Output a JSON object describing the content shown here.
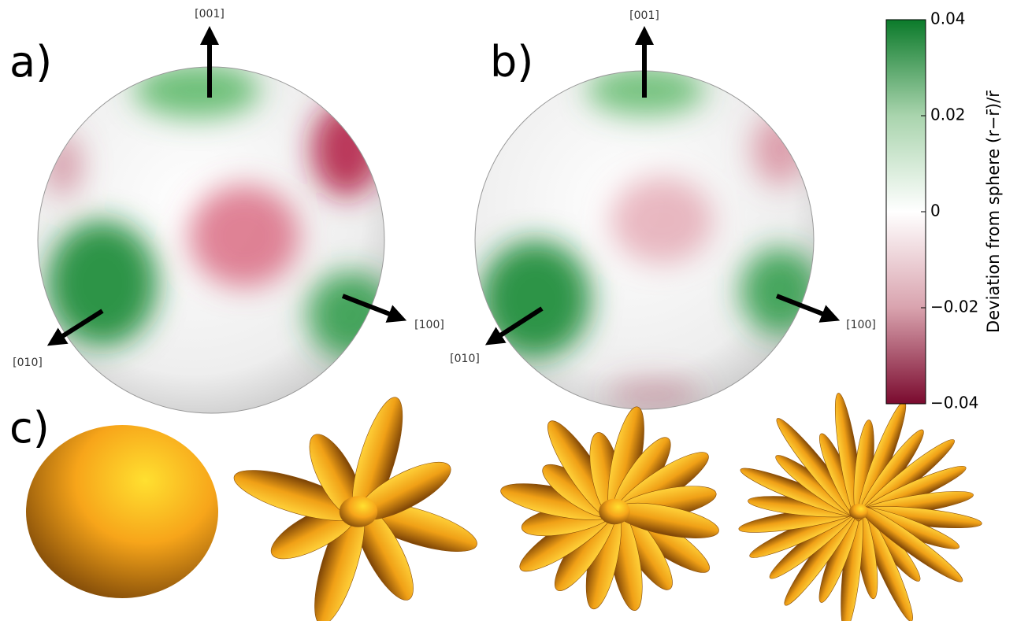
{
  "panels": [
    {
      "label": "a)",
      "axes": [
        "[001]",
        "[100]",
        "[010]"
      ]
    },
    {
      "label": "b)",
      "axes": [
        "[001]",
        "[100]",
        "[010]"
      ]
    },
    {
      "label": "c)"
    }
  ],
  "colorbar": {
    "label": "Deviation from sphere (r−r̄)/r̄",
    "lim": [
      -0.04,
      0.04
    ],
    "ticks": [
      0.04,
      0.02,
      0,
      {
        "value": -0.02,
        "label": "−0.02"
      },
      {
        "value": -0.04,
        "label": "−0.04"
      }
    ],
    "colors": [
      "#7a0a2e",
      "#d9a3ae",
      "#ffffff",
      "#a9d4ad",
      "#0b7a2a"
    ]
  }
}
